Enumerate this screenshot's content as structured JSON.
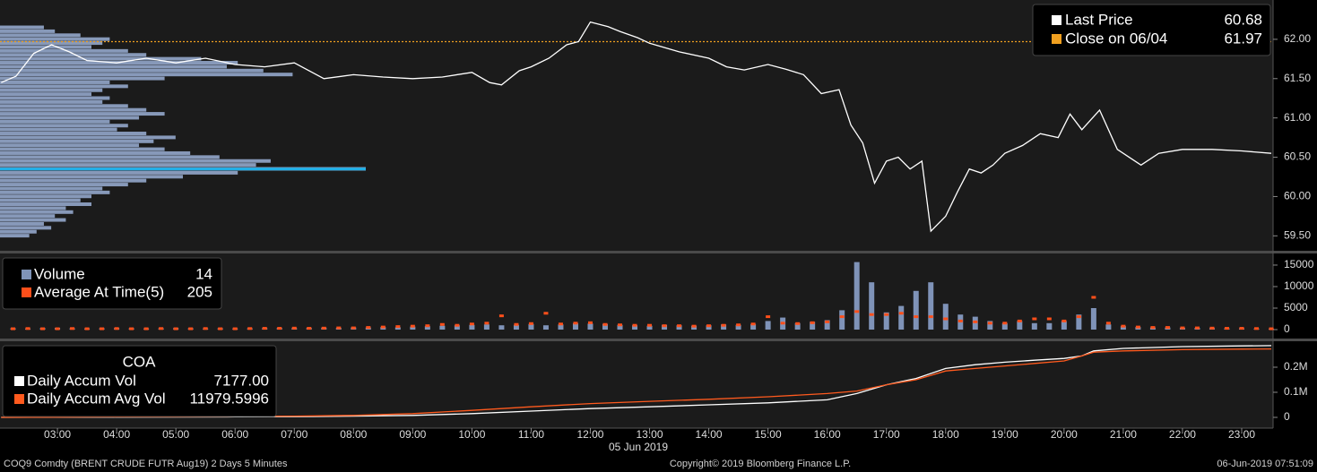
{
  "chart_data": [
    {
      "type": "line",
      "xlim": [
        2.03,
        23.53
      ],
      "ylim": [
        59.31,
        62.5
      ],
      "yticks": [
        {
          "value": 62,
          "label": "62.00"
        },
        {
          "value": 61.5,
          "label": "61.50"
        },
        {
          "value": 61,
          "label": "61.00"
        },
        {
          "value": 60.5,
          "label": "60.50"
        },
        {
          "value": 60,
          "label": "60.00"
        },
        {
          "value": 59.5,
          "label": "59.50"
        }
      ],
      "x": [
        2.05,
        2.3,
        2.6,
        2.9,
        3.2,
        3.5,
        4.0,
        4.5,
        5.0,
        5.5,
        6.0,
        6.5,
        7.0,
        7.5,
        8.0,
        8.5,
        9.0,
        9.5,
        10.0,
        10.3,
        10.5,
        10.8,
        11.0,
        11.3,
        11.6,
        11.8,
        12.0,
        12.3,
        12.5,
        12.8,
        13.0,
        13.5,
        14.0,
        14.3,
        14.6,
        15.0,
        15.3,
        15.6,
        15.9,
        16.2,
        16.4,
        16.6,
        16.8,
        17.0,
        17.2,
        17.4,
        17.6,
        17.75,
        18.0,
        18.2,
        18.4,
        18.6,
        18.8,
        19.0,
        19.3,
        19.6,
        19.9,
        20.1,
        20.3,
        20.6,
        20.9,
        21.3,
        21.6,
        22.0,
        22.5,
        23.0,
        23.5
      ],
      "series": [
        {
          "name": "Last Price",
          "color": "#ffffff",
          "current": 60.68,
          "values": [
            61.45,
            61.53,
            61.82,
            61.93,
            61.84,
            61.73,
            61.7,
            61.76,
            61.7,
            61.76,
            61.68,
            61.65,
            61.7,
            61.5,
            61.55,
            61.52,
            61.5,
            61.52,
            61.58,
            61.45,
            61.42,
            61.6,
            61.65,
            61.76,
            61.93,
            61.97,
            62.22,
            62.16,
            62.1,
            62.02,
            61.95,
            61.84,
            61.76,
            61.65,
            61.61,
            61.68,
            61.62,
            61.55,
            61.31,
            61.36,
            60.91,
            60.68,
            60.17,
            60.45,
            60.5,
            60.35,
            60.45,
            59.56,
            59.75,
            60.06,
            60.35,
            60.3,
            60.4,
            60.55,
            60.65,
            60.8,
            60.75,
            61.05,
            60.85,
            61.1,
            60.6,
            60.4,
            60.55,
            60.6,
            60.6,
            60.58,
            60.55
          ]
        }
      ],
      "reference_lines": [
        {
          "name": "Close on 06/04",
          "value": 61.97,
          "color": "#f0a020"
        }
      ],
      "profile": {
        "color": "#93a7cb",
        "highlight_color": "#1fb0e8",
        "xlim": [
          0,
          100
        ],
        "levels": [
          62.15,
          62.1,
          62.05,
          62.0,
          61.95,
          61.9,
          61.85,
          61.8,
          61.75,
          61.7,
          61.65,
          61.6,
          61.55,
          61.5,
          61.45,
          61.4,
          61.35,
          61.3,
          61.25,
          61.2,
          61.15,
          61.1,
          61.05,
          61.0,
          60.95,
          60.9,
          60.85,
          60.8,
          60.75,
          60.7,
          60.65,
          60.6,
          60.55,
          60.5,
          60.45,
          60.4,
          60.35,
          60.3,
          60.25,
          60.2,
          60.15,
          60.1,
          60.05,
          60.0,
          59.95,
          59.9,
          59.85,
          59.8,
          59.75,
          59.7,
          59.65,
          59.6,
          59.55,
          59.5
        ],
        "values": [
          12,
          15,
          22,
          30,
          28,
          25,
          35,
          40,
          55,
          65,
          62,
          72,
          80,
          45,
          30,
          35,
          28,
          25,
          30,
          28,
          35,
          40,
          45,
          38,
          30,
          35,
          32,
          40,
          48,
          42,
          38,
          45,
          52,
          60,
          74,
          70,
          100,
          65,
          50,
          40,
          35,
          28,
          30,
          25,
          22,
          25,
          18,
          20,
          15,
          18,
          12,
          14,
          10,
          8
        ]
      }
    },
    {
      "type": "bar",
      "xlim": [
        2.03,
        23.53
      ],
      "ylim": [
        -2080,
        17700
      ],
      "yticks": [
        15000,
        10000,
        5000,
        0
      ],
      "x": [
        2.25,
        2.5,
        2.75,
        3.0,
        3.25,
        3.5,
        3.75,
        4.0,
        4.25,
        4.5,
        4.75,
        5.0,
        5.25,
        5.5,
        5.75,
        6.0,
        6.25,
        6.5,
        6.75,
        7.0,
        7.25,
        7.5,
        7.75,
        8.0,
        8.25,
        8.5,
        8.75,
        9.0,
        9.25,
        9.5,
        9.75,
        10.0,
        10.25,
        10.5,
        10.75,
        11.0,
        11.25,
        11.5,
        11.75,
        12.0,
        12.25,
        12.5,
        12.75,
        13.0,
        13.25,
        13.5,
        13.75,
        14.0,
        14.25,
        14.5,
        14.75,
        15.0,
        15.25,
        15.5,
        15.75,
        16.0,
        16.25,
        16.5,
        16.75,
        17.0,
        17.25,
        17.5,
        17.75,
        18.0,
        18.25,
        18.5,
        18.75,
        19.0,
        19.25,
        19.5,
        19.75,
        20.0,
        20.25,
        20.5,
        20.75,
        21.0,
        21.25,
        21.5,
        21.75,
        22.0,
        22.25,
        22.5,
        22.75,
        23.0,
        23.25,
        23.5
      ],
      "series": [
        {
          "name": "Volume",
          "color": "#7f93b8",
          "style": "bar",
          "current": 14,
          "values": [
            300,
            250,
            350,
            400,
            300,
            250,
            300,
            350,
            300,
            250,
            300,
            350,
            300,
            250,
            300,
            250,
            300,
            350,
            400,
            350,
            400,
            450,
            400,
            500,
            500,
            600,
            550,
            700,
            800,
            900,
            1000,
            1100,
            1200,
            1000,
            1100,
            1300,
            1000,
            1200,
            1500,
            1400,
            1300,
            1100,
            1000,
            900,
            1100,
            1000,
            900,
            1000,
            1200,
            1100,
            1300,
            2000,
            2800,
            1500,
            1800,
            2200,
            4500,
            15700,
            11000,
            4000,
            5500,
            9000,
            11000,
            6000,
            3500,
            3000,
            2000,
            1500,
            2000,
            1500,
            1500,
            2000,
            3500,
            5000,
            1200,
            800,
            600,
            500,
            500,
            400,
            400,
            350,
            300,
            300,
            250,
            200
          ]
        },
        {
          "name": "Average At Time(5)",
          "color": "#ff4f1a",
          "style": "marker",
          "current": 205,
          "values": [
            200,
            250,
            200,
            200,
            250,
            200,
            200,
            250,
            200,
            200,
            250,
            200,
            200,
            250,
            200,
            200,
            250,
            300,
            300,
            350,
            300,
            350,
            400,
            400,
            500,
            600,
            700,
            800,
            900,
            1200,
            1000,
            1300,
            1500,
            3200,
            1200,
            1400,
            3800,
            1300,
            1500,
            1600,
            1200,
            1100,
            1000,
            1000,
            900,
            900,
            800,
            900,
            1000,
            1100,
            1300,
            3000,
            1500,
            1400,
            1600,
            1800,
            3000,
            4200,
            3500,
            3500,
            3800,
            3000,
            3000,
            2500,
            2000,
            1800,
            1500,
            1500,
            2000,
            2500,
            2500,
            2000,
            3000,
            7500,
            1500,
            800,
            600,
            500,
            500,
            400,
            400,
            350,
            300,
            300,
            250,
            200
          ]
        }
      ]
    },
    {
      "type": "line",
      "title": "COA",
      "xlim": [
        2.03,
        23.53
      ],
      "ylim": [
        -42900,
        303600
      ],
      "yticks": [
        {
          "value": 200000,
          "label": "0.2M"
        },
        {
          "value": 100000,
          "label": "0.1M"
        },
        0
      ],
      "xlabel": "05 Jun 2019",
      "xticks": [
        {
          "value": 3,
          "label": "03:00"
        },
        {
          "value": 4,
          "label": "04:00"
        },
        {
          "value": 5,
          "label": "05:00"
        },
        {
          "value": 6,
          "label": "06:00"
        },
        {
          "value": 7,
          "label": "07:00"
        },
        {
          "value": 8,
          "label": "08:00"
        },
        {
          "value": 9,
          "label": "09:00"
        },
        {
          "value": 10,
          "label": "10:00"
        },
        {
          "value": 11,
          "label": "11:00"
        },
        {
          "value": 12,
          "label": "12:00"
        },
        {
          "value": 13,
          "label": "13:00"
        },
        {
          "value": 14,
          "label": "14:00"
        },
        {
          "value": 15,
          "label": "15:00"
        },
        {
          "value": 16,
          "label": "16:00"
        },
        {
          "value": 17,
          "label": "17:00"
        },
        {
          "value": 18,
          "label": "18:00"
        },
        {
          "value": 19,
          "label": "19:00"
        },
        {
          "value": 20,
          "label": "20:00"
        },
        {
          "value": 21,
          "label": "21:00"
        },
        {
          "value": 22,
          "label": "22:00"
        },
        {
          "value": 23,
          "label": "23:00"
        }
      ],
      "x": [
        2.05,
        3,
        4,
        5,
        6,
        7,
        8,
        9,
        10,
        11,
        12,
        13,
        14,
        15,
        16,
        16.5,
        17,
        17.5,
        18,
        18.5,
        19,
        19.5,
        20,
        20.3,
        20.5,
        21,
        22,
        23,
        23.5
      ],
      "series": [
        {
          "name": "Daily Accum Vol",
          "color": "#ffffff",
          "current": 7177,
          "current_label": "7177.00",
          "values": [
            0,
            500,
            1000,
            1500,
            2000,
            3000,
            5000,
            8000,
            15000,
            25000,
            35000,
            42000,
            50000,
            58000,
            70000,
            95000,
            130000,
            155000,
            195000,
            210000,
            220000,
            228000,
            235000,
            245000,
            265000,
            275000,
            282000,
            285000,
            286000
          ]
        },
        {
          "name": "Daily Accum Avg Vol",
          "color": "#ff5a1e",
          "current": 11979.5996,
          "values": [
            0,
            1000,
            2000,
            3000,
            4000,
            5000,
            8000,
            15000,
            28000,
            42000,
            55000,
            64000,
            72000,
            82000,
            95000,
            105000,
            130000,
            150000,
            185000,
            195000,
            205000,
            215000,
            225000,
            245000,
            260000,
            265000,
            270000,
            272000,
            273000
          ]
        }
      ]
    }
  ],
  "footer": {
    "left": "COQ9 Comdty (BRENT CRUDE FUTR  Aug19) 2 Days 5 Minutes",
    "center": "Copyright© 2019 Bloomberg Finance L.P.",
    "right": "06-Jun-2019 07:51:09"
  }
}
